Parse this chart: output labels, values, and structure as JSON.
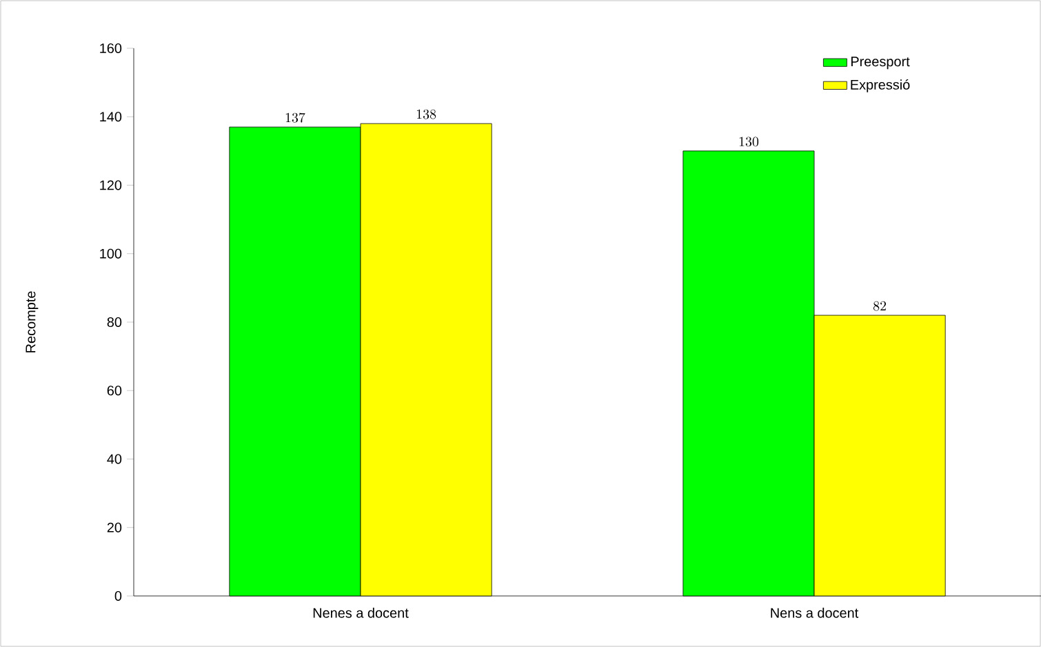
{
  "chart_data": {
    "type": "bar",
    "ylabel": "Recompte",
    "categories": [
      "Nenes a docent",
      "Nens a docent"
    ],
    "series": [
      {
        "name": "Preesport",
        "color": "#00ff00",
        "values": [
          137,
          130
        ]
      },
      {
        "name": "Expressió",
        "color": "#ffff00",
        "values": [
          138,
          82
        ]
      }
    ],
    "ylim": [
      0,
      160
    ],
    "yticks": [
      0,
      20,
      40,
      60,
      80,
      100,
      120,
      140,
      160
    ],
    "data_labels": true,
    "legend": "top right",
    "grid": false
  }
}
